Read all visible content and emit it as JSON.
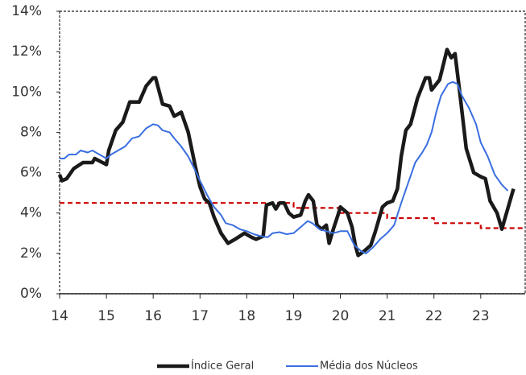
{
  "chart_data": {
    "type": "line",
    "xlim": [
      14,
      23.95
    ],
    "xticks": [
      14,
      15,
      16,
      17,
      18,
      19,
      20,
      21,
      22,
      23
    ],
    "ylim": [
      0,
      14
    ],
    "yticks": [
      {
        "value": 0,
        "label": "0%"
      },
      {
        "value": 2,
        "label": "2%"
      },
      {
        "value": 4,
        "label": "4%"
      },
      {
        "value": 6,
        "label": "6%"
      },
      {
        "value": 8,
        "label": "8%"
      },
      {
        "value": 10,
        "label": "10%"
      },
      {
        "value": 12,
        "label": "12%"
      },
      {
        "value": 14,
        "label": "14%"
      }
    ],
    "legend": "bottom",
    "series": [
      {
        "name": "Índice Geral",
        "color": "#1a1a1a",
        "x": [
          14.0,
          14.05,
          14.15,
          14.3,
          14.5,
          14.7,
          14.75,
          15.0,
          15.05,
          15.2,
          15.35,
          15.5,
          15.7,
          15.85,
          16.0,
          16.05,
          16.2,
          16.35,
          16.45,
          16.6,
          16.75,
          16.9,
          17.0,
          17.1,
          17.2,
          17.3,
          17.45,
          17.6,
          17.75,
          17.95,
          18.1,
          18.2,
          18.35,
          18.42,
          18.55,
          18.62,
          18.7,
          18.8,
          18.9,
          19.0,
          19.15,
          19.25,
          19.32,
          19.42,
          19.5,
          19.6,
          19.7,
          19.76,
          19.85,
          19.95,
          20.0,
          20.15,
          20.25,
          20.32,
          20.38,
          20.5,
          20.65,
          20.75,
          20.9,
          21.0,
          21.12,
          21.22,
          21.3,
          21.4,
          21.5,
          21.65,
          21.82,
          21.9,
          21.95,
          22.12,
          22.28,
          22.37,
          22.45,
          22.55,
          22.69,
          22.85,
          23.0,
          23.1,
          23.2,
          23.35,
          23.45,
          23.55,
          23.7
        ],
        "values": [
          5.9,
          5.6,
          5.7,
          6.2,
          6.5,
          6.5,
          6.7,
          6.4,
          7.1,
          8.1,
          8.5,
          9.5,
          9.5,
          10.3,
          10.7,
          10.7,
          9.4,
          9.3,
          8.8,
          9.0,
          8.0,
          6.3,
          5.3,
          4.7,
          4.5,
          3.8,
          3.0,
          2.5,
          2.7,
          3.0,
          2.8,
          2.7,
          2.85,
          4.4,
          4.5,
          4.2,
          4.5,
          4.5,
          4.0,
          3.8,
          3.9,
          4.6,
          4.9,
          4.6,
          3.4,
          3.2,
          3.4,
          2.5,
          3.2,
          3.9,
          4.3,
          4.0,
          3.3,
          2.4,
          1.9,
          2.1,
          2.4,
          3.1,
          4.3,
          4.5,
          4.6,
          5.2,
          6.8,
          8.1,
          8.4,
          9.7,
          10.7,
          10.7,
          10.1,
          10.6,
          12.1,
          11.7,
          11.9,
          10.0,
          7.2,
          6.0,
          5.8,
          5.7,
          4.6,
          4.0,
          3.2,
          4.0,
          5.2
        ]
      },
      {
        "name": "Média dos Núcleos",
        "color": "#3a6fe0",
        "x": [
          14.0,
          14.1,
          14.2,
          14.35,
          14.45,
          14.6,
          14.7,
          14.85,
          15.0,
          15.1,
          15.25,
          15.4,
          15.55,
          15.7,
          15.85,
          16.0,
          16.1,
          16.2,
          16.35,
          16.45,
          16.6,
          16.75,
          16.9,
          17.0,
          17.15,
          17.3,
          17.45,
          17.55,
          17.7,
          17.85,
          18.0,
          18.15,
          18.3,
          18.45,
          18.55,
          18.7,
          18.85,
          19.0,
          19.15,
          19.3,
          19.4,
          19.55,
          19.7,
          19.85,
          20.0,
          20.15,
          20.3,
          20.45,
          20.55,
          20.7,
          20.85,
          21.0,
          21.15,
          21.3,
          21.45,
          21.6,
          21.75,
          21.85,
          21.95,
          22.05,
          22.15,
          22.3,
          22.4,
          22.5,
          22.6,
          22.75,
          22.9,
          23.0,
          23.15,
          23.3,
          23.45,
          23.58
        ],
        "values": [
          6.7,
          6.7,
          6.9,
          6.9,
          7.1,
          7.0,
          7.1,
          6.9,
          6.7,
          6.9,
          7.1,
          7.3,
          7.7,
          7.8,
          8.2,
          8.4,
          8.35,
          8.1,
          8.0,
          7.7,
          7.3,
          6.8,
          6.1,
          5.6,
          4.9,
          4.3,
          3.9,
          3.5,
          3.4,
          3.2,
          3.1,
          2.95,
          2.85,
          2.8,
          3.0,
          3.05,
          2.95,
          3.0,
          3.3,
          3.6,
          3.5,
          3.2,
          3.1,
          3.0,
          3.1,
          3.1,
          2.4,
          2.1,
          2.0,
          2.3,
          2.7,
          3.0,
          3.4,
          4.5,
          5.5,
          6.5,
          7.0,
          7.4,
          8.0,
          9.0,
          9.8,
          10.4,
          10.5,
          10.4,
          9.8,
          9.2,
          8.4,
          7.5,
          6.8,
          5.9,
          5.4,
          5.1
        ]
      }
    ],
    "target": {
      "color": "#cc0000",
      "x": [
        14,
        19,
        19,
        20,
        20,
        21,
        21,
        22,
        22,
        23,
        23,
        23.95
      ],
      "values": [
        4.5,
        4.5,
        4.25,
        4.25,
        4.0,
        4.0,
        3.75,
        3.75,
        3.5,
        3.5,
        3.25,
        3.25
      ]
    }
  }
}
